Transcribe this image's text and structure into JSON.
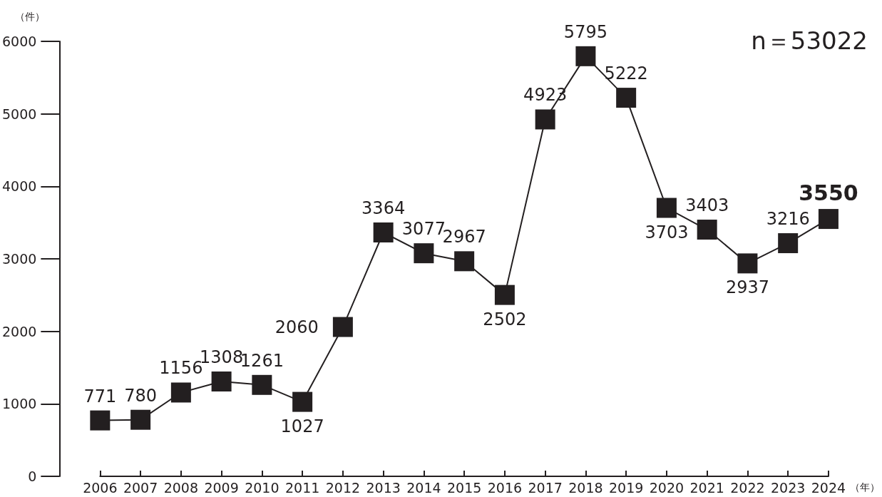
{
  "chart_data": {
    "type": "line",
    "ylabel": "（件）",
    "xlabel": "（年）",
    "categories": [
      "2006",
      "2007",
      "2008",
      "2009",
      "2010",
      "2011",
      "2012",
      "2013",
      "2014",
      "2015",
      "2016",
      "2017",
      "2018",
      "2019",
      "2020",
      "2021",
      "2022",
      "2023",
      "2024"
    ],
    "series": [
      {
        "color": "#231f20",
        "values": [
          771,
          780,
          1156,
          1308,
          1261,
          1027,
          2060,
          3364,
          3077,
          2967,
          2502,
          4923,
          5795,
          5222,
          3703,
          3403,
          2937,
          3216,
          3550
        ]
      }
    ],
    "ylim": [
      0,
      6000
    ],
    "yticks": [
      0,
      1000,
      2000,
      3000,
      4000,
      5000,
      6000
    ],
    "grid": false,
    "marker": "square",
    "line_style": "solid",
    "data_labels": true,
    "annotations": [
      "n＝53022"
    ]
  }
}
